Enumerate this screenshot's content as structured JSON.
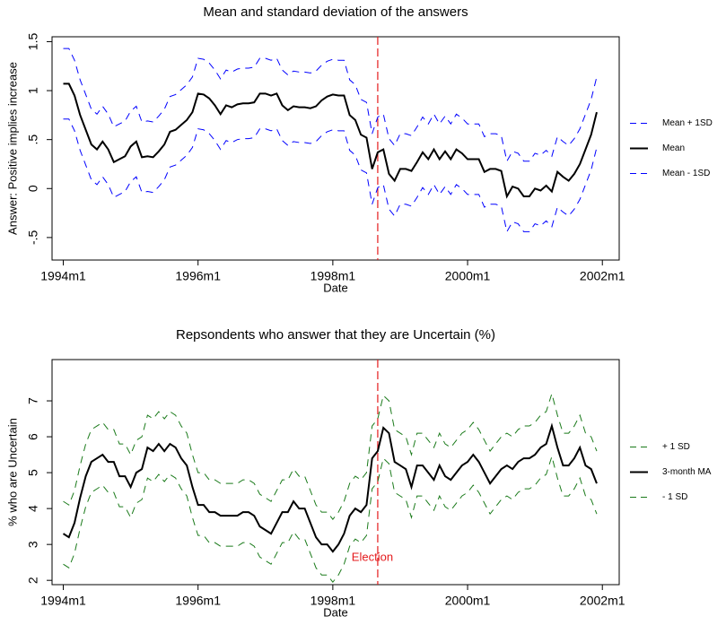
{
  "chart_data": [
    {
      "type": "line",
      "title": "Mean and standard deviation of the answers",
      "x_label": "Date",
      "y_label": "Answer: Positive implies increase",
      "x": [
        "1994m1",
        "1994m2",
        "1994m3",
        "1994m4",
        "1994m5",
        "1994m6",
        "1994m7",
        "1994m8",
        "1994m9",
        "1994m10",
        "1994m11",
        "1994m12",
        "1995m1",
        "1995m2",
        "1995m3",
        "1995m4",
        "1995m5",
        "1995m6",
        "1995m7",
        "1995m8",
        "1995m9",
        "1995m10",
        "1995m11",
        "1995m12",
        "1996m1",
        "1996m2",
        "1996m3",
        "1996m4",
        "1996m5",
        "1996m6",
        "1996m7",
        "1996m8",
        "1996m9",
        "1996m10",
        "1996m11",
        "1996m12",
        "1997m1",
        "1997m2",
        "1997m3",
        "1997m4",
        "1997m5",
        "1997m6",
        "1997m7",
        "1997m8",
        "1997m9",
        "1997m10",
        "1997m11",
        "1997m12",
        "1998m1",
        "1998m2",
        "1998m3",
        "1998m4",
        "1998m5",
        "1998m6",
        "1998m7",
        "1998m8",
        "1998m9",
        "1998m10",
        "1998m11",
        "1998m12",
        "1999m1",
        "1999m2",
        "1999m3",
        "1999m4",
        "1999m5",
        "1999m6",
        "1999m7",
        "1999m8",
        "1999m9",
        "1999m10",
        "1999m11",
        "1999m12",
        "2000m1",
        "2000m2",
        "2000m3",
        "2000m4",
        "2000m5",
        "2000m6",
        "2000m7",
        "2000m8",
        "2000m9",
        "2000m10",
        "2000m11",
        "2000m12",
        "2001m1",
        "2001m2",
        "2001m3",
        "2001m4",
        "2001m5",
        "2001m6",
        "2001m7",
        "2001m8",
        "2001m9",
        "2001m10",
        "2001m11",
        "2001m12"
      ],
      "xlim": [
        "1993m11",
        "2002m4"
      ],
      "xticks": [
        "1994m1",
        "1996m1",
        "1998m1",
        "2000m1",
        "2002m1"
      ],
      "ylim": [
        -0.73,
        1.55
      ],
      "yticks": [
        {
          "value": -0.5,
          "label": "-.5"
        },
        0,
        {
          "value": 0.5,
          "label": ".5"
        },
        1,
        1.5
      ],
      "vline": {
        "x": "1998m9",
        "color": "#e41a1c"
      },
      "legend": "right",
      "series": [
        {
          "name": "Mean + 1SD",
          "color": "#0000ff",
          "style": "dashed",
          "values": [
            1.43,
            1.43,
            1.31,
            1.11,
            0.96,
            0.81,
            0.76,
            0.84,
            0.76,
            0.63,
            0.66,
            0.69,
            0.79,
            0.84,
            0.68,
            0.69,
            0.68,
            0.74,
            0.81,
            0.94,
            0.96,
            1.01,
            1.06,
            1.14,
            1.33,
            1.32,
            1.28,
            1.21,
            1.12,
            1.21,
            1.19,
            1.22,
            1.23,
            1.23,
            1.24,
            1.33,
            1.33,
            1.31,
            1.33,
            1.21,
            1.16,
            1.2,
            1.19,
            1.19,
            1.18,
            1.2,
            1.26,
            1.3,
            1.32,
            1.31,
            1.31,
            1.11,
            1.06,
            0.91,
            0.88,
            0.56,
            0.73,
            0.76,
            0.51,
            0.44,
            0.56,
            0.56,
            0.54,
            0.63,
            0.73,
            0.66,
            0.76,
            0.66,
            0.74,
            0.66,
            0.76,
            0.72,
            0.66,
            0.66,
            0.66,
            0.53,
            0.56,
            0.56,
            0.54,
            0.28,
            0.38,
            0.36,
            0.28,
            0.28,
            0.36,
            0.34,
            0.39,
            0.33,
            0.53,
            0.48,
            0.44,
            0.51,
            0.61,
            0.76,
            0.91,
            1.14
          ]
        },
        {
          "name": "Mean",
          "color": "#000000",
          "style": "solid",
          "values": [
            1.07,
            1.07,
            0.95,
            0.75,
            0.6,
            0.45,
            0.4,
            0.48,
            0.4,
            0.27,
            0.3,
            0.33,
            0.43,
            0.48,
            0.32,
            0.33,
            0.32,
            0.38,
            0.45,
            0.58,
            0.6,
            0.65,
            0.7,
            0.78,
            0.97,
            0.96,
            0.92,
            0.85,
            0.76,
            0.85,
            0.83,
            0.86,
            0.87,
            0.87,
            0.88,
            0.97,
            0.97,
            0.95,
            0.97,
            0.85,
            0.8,
            0.84,
            0.83,
            0.83,
            0.82,
            0.84,
            0.9,
            0.94,
            0.96,
            0.95,
            0.95,
            0.75,
            0.7,
            0.55,
            0.52,
            0.2,
            0.37,
            0.4,
            0.15,
            0.08,
            0.2,
            0.2,
            0.18,
            0.27,
            0.37,
            0.3,
            0.4,
            0.3,
            0.38,
            0.3,
            0.4,
            0.36,
            0.3,
            0.3,
            0.3,
            0.17,
            0.2,
            0.2,
            0.18,
            -0.08,
            0.02,
            0,
            -0.08,
            -0.08,
            0,
            -0.02,
            0.03,
            -0.03,
            0.17,
            0.12,
            0.08,
            0.15,
            0.25,
            0.4,
            0.55,
            0.78
          ]
        },
        {
          "name": "Mean - 1SD",
          "color": "#0000ff",
          "style": "dashed",
          "values": [
            0.71,
            0.71,
            0.59,
            0.39,
            0.24,
            0.09,
            0.04,
            0.12,
            0.04,
            -0.09,
            -0.06,
            -0.03,
            0.07,
            0.12,
            -0.04,
            -0.03,
            -0.04,
            0.02,
            0.09,
            0.22,
            0.24,
            0.29,
            0.34,
            0.42,
            0.61,
            0.6,
            0.56,
            0.49,
            0.4,
            0.49,
            0.47,
            0.5,
            0.51,
            0.51,
            0.52,
            0.61,
            0.61,
            0.59,
            0.61,
            0.49,
            0.44,
            0.48,
            0.47,
            0.47,
            0.46,
            0.48,
            0.54,
            0.58,
            0.6,
            0.59,
            0.59,
            0.39,
            0.34,
            0.19,
            0.16,
            -0.16,
            0.01,
            0.04,
            -0.21,
            -0.28,
            -0.16,
            -0.16,
            -0.18,
            -0.09,
            0.01,
            -0.06,
            0.04,
            -0.06,
            0.02,
            -0.06,
            0.04,
            0,
            -0.06,
            -0.06,
            -0.06,
            -0.19,
            -0.16,
            -0.16,
            -0.18,
            -0.44,
            -0.34,
            -0.36,
            -0.44,
            -0.44,
            -0.36,
            -0.38,
            -0.33,
            -0.39,
            -0.19,
            -0.24,
            -0.28,
            -0.21,
            -0.11,
            0.04,
            0.19,
            0.42
          ]
        }
      ]
    },
    {
      "type": "line",
      "title": "Repsondents who answer that they are Uncertain (%)",
      "x_label": "Date",
      "y_label": "% who are Uncertain",
      "x": [
        "1994m1",
        "1994m2",
        "1994m3",
        "1994m4",
        "1994m5",
        "1994m6",
        "1994m7",
        "1994m8",
        "1994m9",
        "1994m10",
        "1994m11",
        "1994m12",
        "1995m1",
        "1995m2",
        "1995m3",
        "1995m4",
        "1995m5",
        "1995m6",
        "1995m7",
        "1995m8",
        "1995m9",
        "1995m10",
        "1995m11",
        "1995m12",
        "1996m1",
        "1996m2",
        "1996m3",
        "1996m4",
        "1996m5",
        "1996m6",
        "1996m7",
        "1996m8",
        "1996m9",
        "1996m10",
        "1996m11",
        "1996m12",
        "1997m1",
        "1997m2",
        "1997m3",
        "1997m4",
        "1997m5",
        "1997m6",
        "1997m7",
        "1997m8",
        "1997m9",
        "1997m10",
        "1997m11",
        "1997m12",
        "1998m1",
        "1998m2",
        "1998m3",
        "1998m4",
        "1998m5",
        "1998m6",
        "1998m7",
        "1998m8",
        "1998m9",
        "1998m10",
        "1998m11",
        "1998m12",
        "1999m1",
        "1999m2",
        "1999m3",
        "1999m4",
        "1999m5",
        "1999m6",
        "1999m7",
        "1999m8",
        "1999m9",
        "1999m10",
        "1999m11",
        "1999m12",
        "2000m1",
        "2000m2",
        "2000m3",
        "2000m4",
        "2000m5",
        "2000m6",
        "2000m7",
        "2000m8",
        "2000m9",
        "2000m10",
        "2000m11",
        "2000m12",
        "2001m1",
        "2001m2",
        "2001m3",
        "2001m4",
        "2001m5",
        "2001m6",
        "2001m7",
        "2001m8",
        "2001m9",
        "2001m10",
        "2001m11",
        "2001m12"
      ],
      "xlim": [
        "1993m11",
        "2002m4"
      ],
      "xticks": [
        "1994m1",
        "1996m1",
        "1998m1",
        "2000m1",
        "2002m1"
      ],
      "ylim": [
        1.88,
        8.15
      ],
      "yticks": [
        2,
        3,
        4,
        5,
        6,
        7
      ],
      "vline": {
        "x": "1998m9",
        "color": "#e41a1c"
      },
      "annotations": [
        {
          "text": "Election",
          "x": "1998m9",
          "y": 2.63,
          "color": "#e41a1c"
        }
      ],
      "legend": "right",
      "series": [
        {
          "name": "+ 1 SD",
          "color": "#1a7a1a",
          "style": "dashed",
          "values": [
            4.2,
            4.1,
            4.5,
            5.2,
            5.8,
            6.2,
            6.3,
            6.4,
            6.2,
            6.2,
            5.8,
            5.8,
            5.5,
            5.9,
            6.0,
            6.6,
            6.5,
            6.7,
            6.5,
            6.7,
            6.6,
            6.3,
            6.1,
            5.5,
            5.0,
            5.0,
            4.8,
            4.8,
            4.7,
            4.7,
            4.7,
            4.7,
            4.8,
            4.8,
            4.7,
            4.4,
            4.3,
            4.2,
            4.5,
            4.8,
            4.8,
            5.1,
            4.9,
            4.9,
            4.5,
            4.1,
            3.9,
            3.9,
            3.7,
            3.9,
            4.2,
            4.7,
            4.9,
            4.8,
            5.0,
            6.3,
            6.5,
            7.15,
            7.0,
            6.2,
            6.1,
            6.0,
            5.5,
            6.1,
            6.1,
            5.9,
            5.7,
            6.1,
            5.8,
            5.7,
            5.9,
            6.1,
            6.2,
            6.4,
            6.2,
            5.9,
            5.6,
            5.8,
            6.0,
            6.1,
            6.0,
            6.2,
            6.3,
            6.3,
            6.4,
            6.6,
            6.7,
            7.2,
            6.6,
            6.1,
            6.1,
            6.3,
            6.6,
            6.1,
            6.0,
            5.6
          ]
        },
        {
          "name": "3-month MA",
          "color": "#000000",
          "style": "solid",
          "values": [
            3.3,
            3.2,
            3.6,
            4.3,
            4.9,
            5.3,
            5.4,
            5.5,
            5.3,
            5.3,
            4.9,
            4.9,
            4.6,
            5.0,
            5.1,
            5.7,
            5.6,
            5.8,
            5.6,
            5.8,
            5.7,
            5.4,
            5.2,
            4.6,
            4.1,
            4.1,
            3.9,
            3.9,
            3.8,
            3.8,
            3.8,
            3.8,
            3.9,
            3.9,
            3.8,
            3.5,
            3.4,
            3.3,
            3.6,
            3.9,
            3.9,
            4.2,
            4.0,
            4.0,
            3.6,
            3.2,
            3.0,
            3.0,
            2.8,
            3.0,
            3.3,
            3.8,
            4.0,
            3.9,
            4.1,
            5.4,
            5.6,
            6.25,
            6.1,
            5.3,
            5.2,
            5.1,
            4.6,
            5.2,
            5.2,
            5.0,
            4.8,
            5.2,
            4.9,
            4.8,
            5.0,
            5.2,
            5.3,
            5.5,
            5.3,
            5.0,
            4.7,
            4.9,
            5.1,
            5.2,
            5.1,
            5.3,
            5.4,
            5.4,
            5.5,
            5.7,
            5.8,
            6.3,
            5.7,
            5.2,
            5.2,
            5.4,
            5.7,
            5.2,
            5.1,
            4.7
          ]
        },
        {
          "name": "- 1 SD",
          "color": "#1a7a1a",
          "style": "dashed",
          "values": [
            2.45,
            2.35,
            2.75,
            3.45,
            4.05,
            4.45,
            4.55,
            4.65,
            4.45,
            4.45,
            4.05,
            4.05,
            3.75,
            4.15,
            4.25,
            4.85,
            4.75,
            4.95,
            4.75,
            4.95,
            4.85,
            4.55,
            4.35,
            3.75,
            3.25,
            3.25,
            3.05,
            3.05,
            2.95,
            2.95,
            2.95,
            2.95,
            3.05,
            3.05,
            2.95,
            2.65,
            2.55,
            2.45,
            2.75,
            3.05,
            3.05,
            3.35,
            3.15,
            3.15,
            2.75,
            2.35,
            2.15,
            2.15,
            1.95,
            2.15,
            2.45,
            2.95,
            3.15,
            3.05,
            3.25,
            4.55,
            4.75,
            5.4,
            5.25,
            4.45,
            4.35,
            4.25,
            3.75,
            4.35,
            4.35,
            4.15,
            3.95,
            4.35,
            4.05,
            3.95,
            4.15,
            4.35,
            4.45,
            4.65,
            4.45,
            4.15,
            3.85,
            4.05,
            4.25,
            4.35,
            4.25,
            4.45,
            4.55,
            4.55,
            4.65,
            4.85,
            4.95,
            5.45,
            4.85,
            4.35,
            4.35,
            4.55,
            4.85,
            4.35,
            4.25,
            3.85
          ]
        }
      ]
    }
  ]
}
